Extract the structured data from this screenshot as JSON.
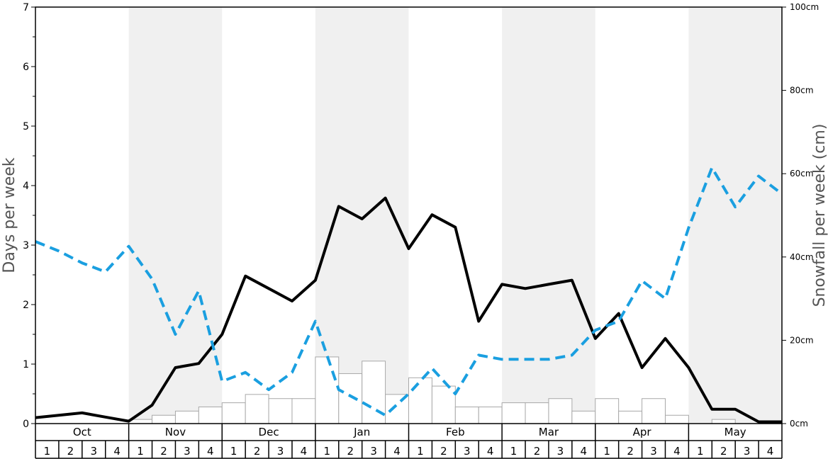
{
  "chart_data": {
    "type": "line",
    "ylabel_left": "Days per week",
    "ylabel_right": "Snowfall per week (cm)",
    "ylim_left": [
      0,
      7
    ],
    "ylim_right": [
      0,
      100
    ],
    "left_ticks": [
      "0",
      "1",
      "2",
      "3",
      "4",
      "5",
      "6",
      "7"
    ],
    "right_ticks": [
      "0cm",
      "20cm",
      "40cm",
      "60cm",
      "80cm",
      "100cm"
    ],
    "months": [
      "Oct",
      "Nov",
      "Dec",
      "Jan",
      "Feb",
      "Mar",
      "Apr",
      "May"
    ],
    "weeks_per_month": [
      "1",
      "2",
      "3",
      "4"
    ],
    "shaded_months": [
      "Nov",
      "Jan",
      "Mar",
      "May"
    ],
    "colors": {
      "line_solid": "#000000",
      "line_dashed": "#1a9fe0",
      "shading": "#f0f0f0",
      "bar_fill": "#ffffff",
      "bar_stroke": "#a8a8a8"
    },
    "series": [
      {
        "style": "solid",
        "axis": "left",
        "values": [
          0.1,
          0.14,
          0.18,
          0.11,
          0.04,
          0.31,
          0.94,
          1.01,
          1.5,
          2.48,
          2.27,
          2.06,
          2.41,
          3.65,
          3.44,
          3.79,
          2.94,
          3.51,
          3.3,
          1.72,
          2.34,
          2.27,
          2.34,
          2.41,
          1.43,
          1.85,
          0.94,
          1.43,
          0.94,
          0.24,
          0.24,
          0.03,
          0.03
        ]
      },
      {
        "style": "dashed",
        "axis": "left",
        "values": [
          3.06,
          2.9,
          2.7,
          2.55,
          2.98,
          2.43,
          1.5,
          2.23,
          0.71,
          0.86,
          0.57,
          0.86,
          1.72,
          0.57,
          0.36,
          0.14,
          0.5,
          0.93,
          0.5,
          1.15,
          1.08,
          1.08,
          1.08,
          1.15,
          1.57,
          1.72,
          2.4,
          2.1,
          3.29,
          4.3,
          3.64,
          4.16,
          3.86
        ]
      },
      {
        "style": "bar",
        "axis": "right",
        "values": [
          0,
          0,
          0,
          0,
          1,
          2,
          3,
          4,
          5,
          7,
          6,
          6,
          16,
          12,
          15,
          7,
          11,
          9,
          4,
          4,
          5,
          5,
          6,
          3,
          6,
          3,
          6,
          2,
          0,
          1,
          0,
          0
        ]
      }
    ]
  }
}
